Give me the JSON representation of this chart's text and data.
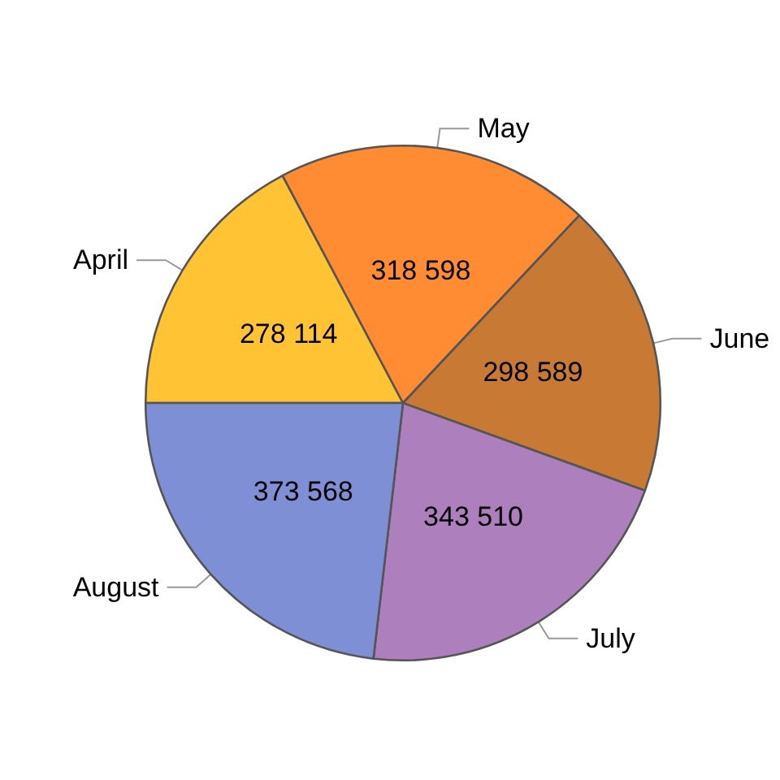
{
  "chart_data": {
    "type": "pie",
    "categories": [
      "April",
      "May",
      "June",
      "July",
      "August"
    ],
    "values": [
      278114,
      318598,
      298589,
      343510,
      373568
    ],
    "value_labels": [
      "278 114",
      "318 598",
      "298 589",
      "343 510",
      "373 568"
    ],
    "colors": [
      "#ffc333",
      "#ff8c33",
      "#c87a35",
      "#ad7fbd",
      "#7f8fd6"
    ]
  }
}
